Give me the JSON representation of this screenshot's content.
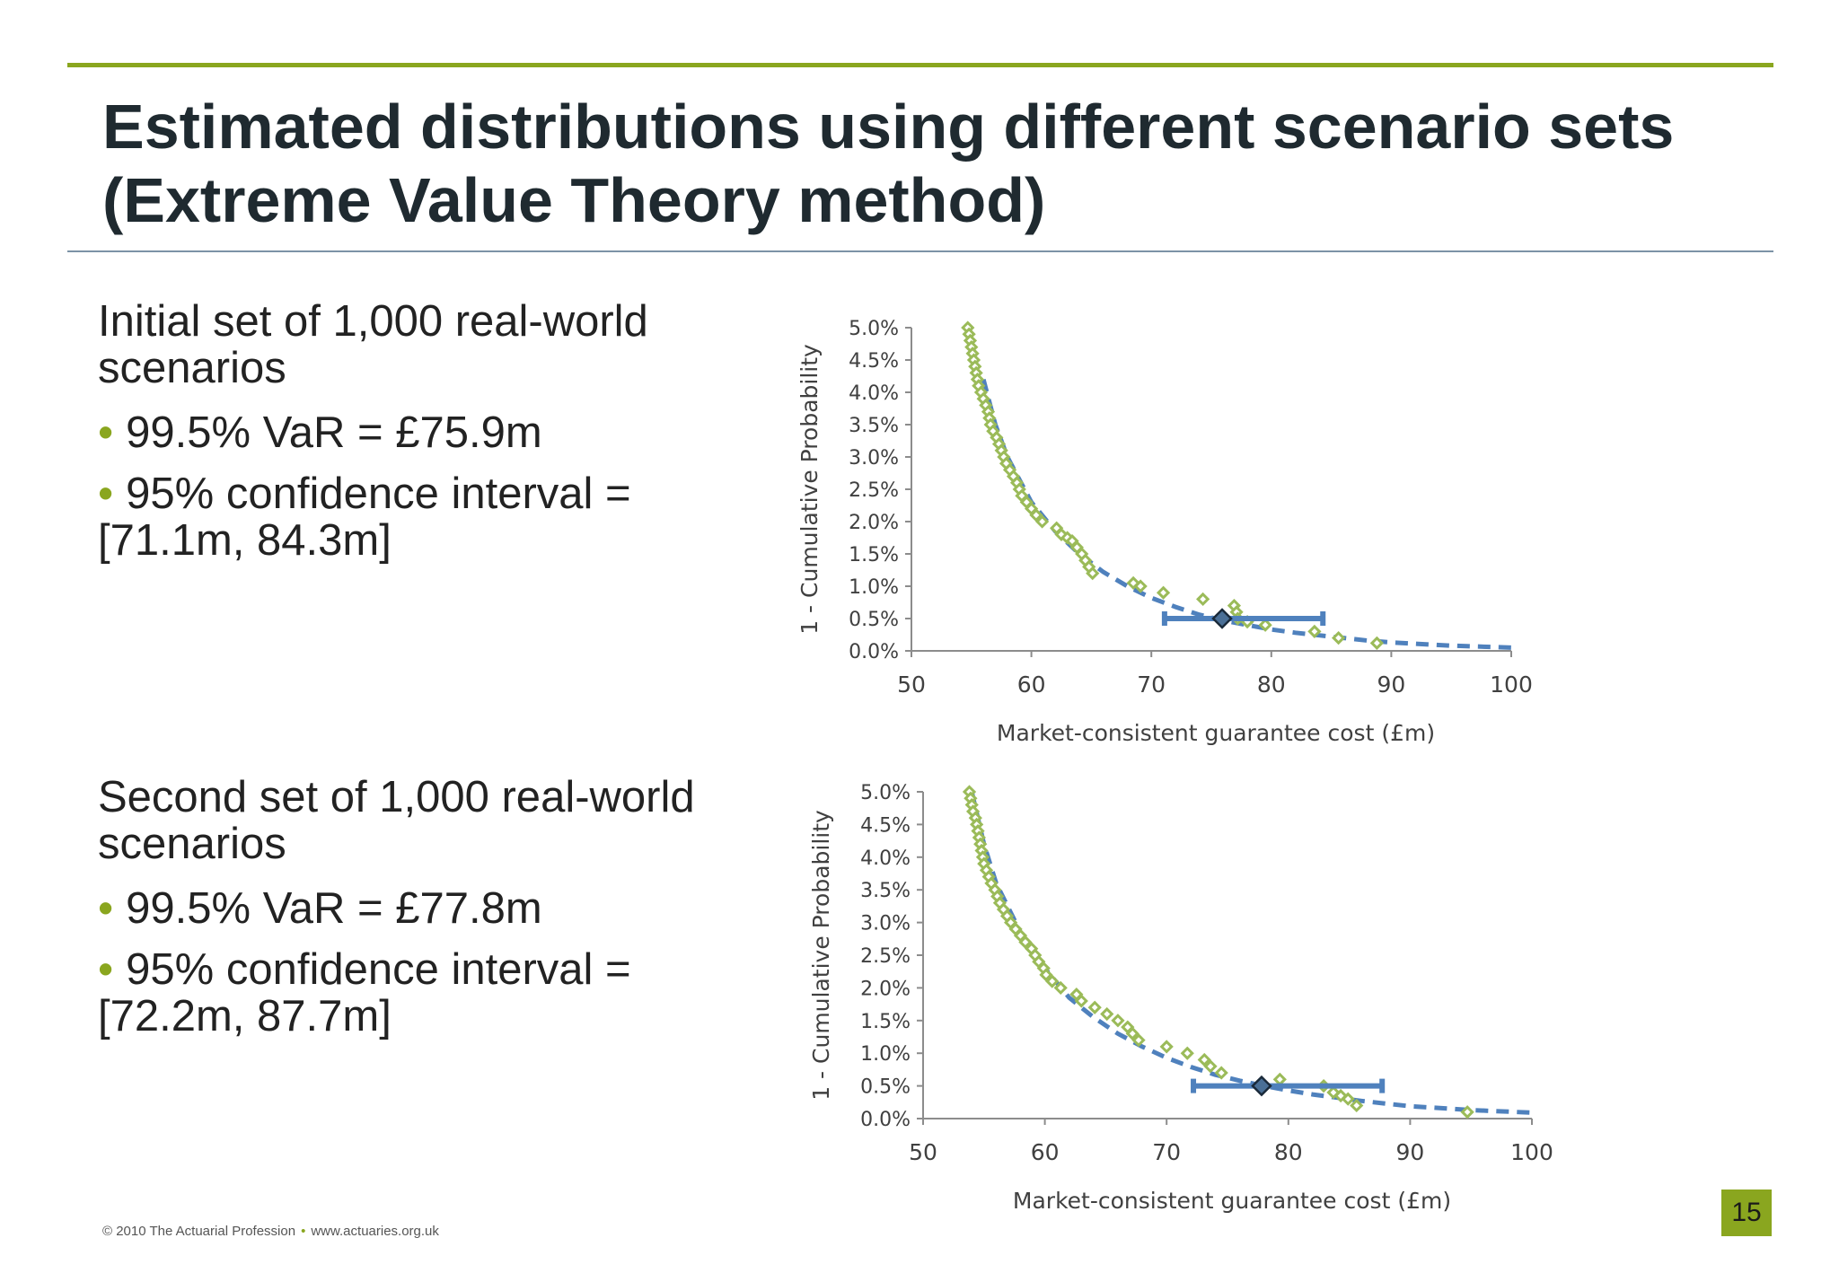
{
  "title": "Estimated distributions using different scenario sets\n(Extreme Value Theory method)",
  "blocks": [
    {
      "heading": "Initial set of 1,000 real-world scenarios",
      "bullets": [
        "99.5% VaR = £75.9m",
        "95% confidence interval = [71.1m, 84.3m]"
      ]
    },
    {
      "heading": "Second set of 1,000 real-world scenarios",
      "bullets": [
        "99.5% VaR = £77.8m",
        "95% confidence interval = [72.2m, 87.7m]"
      ]
    }
  ],
  "footer": {
    "copyright": "© 2010 The Actuarial Profession",
    "site": "www.actuaries.org.uk"
  },
  "page_number": "15",
  "colors": {
    "accent_green": "#8aa61f",
    "fit_blue": "#4f81bd",
    "var_marker": "#4a6f96",
    "scatter_green": "#9bbb59"
  },
  "chart_data": [
    {
      "type": "scatter",
      "xlabel": "Market-consistent guarantee cost (£m)",
      "ylabel": "1 - Cumulative Probability",
      "xlim": [
        50,
        100
      ],
      "ylim": [
        0,
        5
      ],
      "x_ticks": [
        50,
        60,
        70,
        80,
        90,
        100
      ],
      "y_ticks": [
        "0.0%",
        "0.5%",
        "1.0%",
        "1.5%",
        "2.0%",
        "2.5%",
        "3.0%",
        "3.5%",
        "4.0%",
        "4.5%",
        "5.0%"
      ],
      "grid": false,
      "series": [
        {
          "kind": "points",
          "points": [
            [
              54.7,
              5.0
            ],
            [
              54.8,
              4.9
            ],
            [
              54.9,
              4.8
            ],
            [
              55.0,
              4.7
            ],
            [
              55.1,
              4.6
            ],
            [
              55.2,
              4.5
            ],
            [
              55.3,
              4.4
            ],
            [
              55.4,
              4.3
            ],
            [
              55.5,
              4.2
            ],
            [
              55.6,
              4.1
            ],
            [
              55.8,
              4.0
            ],
            [
              56.0,
              3.9
            ],
            [
              56.2,
              3.8
            ],
            [
              56.4,
              3.7
            ],
            [
              56.5,
              3.6
            ],
            [
              56.6,
              3.5
            ],
            [
              56.8,
              3.4
            ],
            [
              57.1,
              3.3
            ],
            [
              57.3,
              3.2
            ],
            [
              57.5,
              3.1
            ],
            [
              57.7,
              3.0
            ],
            [
              57.9,
              2.9
            ],
            [
              58.2,
              2.8
            ],
            [
              58.5,
              2.7
            ],
            [
              58.8,
              2.6
            ],
            [
              59.0,
              2.5
            ],
            [
              59.2,
              2.4
            ],
            [
              59.6,
              2.3
            ],
            [
              60.0,
              2.2
            ],
            [
              60.4,
              2.1
            ],
            [
              60.9,
              2.0
            ],
            [
              62.1,
              1.9
            ],
            [
              62.5,
              1.8
            ],
            [
              63.0,
              1.75
            ],
            [
              63.4,
              1.7
            ],
            [
              63.8,
              1.6
            ],
            [
              64.2,
              1.5
            ],
            [
              64.5,
              1.4
            ],
            [
              64.8,
              1.3
            ],
            [
              65.1,
              1.2
            ],
            [
              68.5,
              1.05
            ],
            [
              69.1,
              1.0
            ],
            [
              71.0,
              0.9
            ],
            [
              74.3,
              0.8
            ],
            [
              76.9,
              0.7
            ],
            [
              77.1,
              0.6
            ],
            [
              77.2,
              0.5
            ],
            [
              78.0,
              0.45
            ],
            [
              79.5,
              0.4
            ],
            [
              83.6,
              0.3
            ],
            [
              85.6,
              0.2
            ],
            [
              88.8,
              0.12
            ]
          ]
        },
        {
          "kind": "fitted_curve",
          "points": [
            [
              56.0,
              4.2
            ],
            [
              57.0,
              3.5
            ],
            [
              58.0,
              3.0
            ],
            [
              60.0,
              2.3
            ],
            [
              62.0,
              1.85
            ],
            [
              64.0,
              1.5
            ],
            [
              66.0,
              1.22
            ],
            [
              68.0,
              1.0
            ],
            [
              70.0,
              0.82
            ],
            [
              72.0,
              0.68
            ],
            [
              74.0,
              0.56
            ],
            [
              76.0,
              0.47
            ],
            [
              78.0,
              0.4
            ],
            [
              80.0,
              0.33
            ],
            [
              82.0,
              0.28
            ],
            [
              84.0,
              0.24
            ],
            [
              86.0,
              0.2
            ],
            [
              88.0,
              0.16
            ],
            [
              90.0,
              0.13
            ],
            [
              95.0,
              0.08
            ],
            [
              100.0,
              0.05
            ]
          ]
        },
        {
          "kind": "var_estimate",
          "x": 75.9,
          "y": 0.5,
          "ci": [
            71.1,
            84.3
          ]
        }
      ]
    },
    {
      "type": "scatter",
      "xlabel": "Market-consistent guarantee cost (£m)",
      "ylabel": "1 - Cumulative Probability",
      "xlim": [
        50,
        100
      ],
      "ylim": [
        0,
        5
      ],
      "x_ticks": [
        50,
        60,
        70,
        80,
        90,
        100
      ],
      "y_ticks": [
        "0.0%",
        "0.5%",
        "1.0%",
        "1.5%",
        "2.0%",
        "2.5%",
        "3.0%",
        "3.5%",
        "4.0%",
        "4.5%",
        "5.0%"
      ],
      "grid": false,
      "series": [
        {
          "kind": "points",
          "points": [
            [
              53.8,
              5.0
            ],
            [
              53.9,
              4.9
            ],
            [
              54.0,
              4.8
            ],
            [
              54.1,
              4.7
            ],
            [
              54.3,
              4.6
            ],
            [
              54.4,
              4.5
            ],
            [
              54.5,
              4.4
            ],
            [
              54.6,
              4.3
            ],
            [
              54.7,
              4.2
            ],
            [
              54.8,
              4.1
            ],
            [
              54.9,
              4.0
            ],
            [
              55.0,
              3.9
            ],
            [
              55.2,
              3.8
            ],
            [
              55.4,
              3.7
            ],
            [
              55.6,
              3.6
            ],
            [
              55.9,
              3.5
            ],
            [
              56.1,
              3.4
            ],
            [
              56.3,
              3.3
            ],
            [
              56.6,
              3.2
            ],
            [
              56.9,
              3.1
            ],
            [
              57.2,
              3.0
            ],
            [
              57.6,
              2.9
            ],
            [
              58.0,
              2.8
            ],
            [
              58.4,
              2.7
            ],
            [
              58.9,
              2.6
            ],
            [
              59.2,
              2.5
            ],
            [
              59.5,
              2.4
            ],
            [
              59.9,
              2.3
            ],
            [
              60.1,
              2.2
            ],
            [
              60.6,
              2.1
            ],
            [
              61.3,
              2.0
            ],
            [
              62.6,
              1.9
            ],
            [
              63.0,
              1.8
            ],
            [
              64.1,
              1.7
            ],
            [
              65.1,
              1.6
            ],
            [
              66.0,
              1.5
            ],
            [
              66.8,
              1.4
            ],
            [
              67.2,
              1.3
            ],
            [
              67.7,
              1.2
            ],
            [
              70.0,
              1.1
            ],
            [
              71.7,
              1.0
            ],
            [
              73.1,
              0.9
            ],
            [
              73.6,
              0.8
            ],
            [
              74.5,
              0.7
            ],
            [
              79.3,
              0.6
            ],
            [
              82.9,
              0.5
            ],
            [
              83.7,
              0.4
            ],
            [
              84.3,
              0.35
            ],
            [
              84.9,
              0.3
            ],
            [
              85.6,
              0.2
            ],
            [
              94.7,
              0.1
            ]
          ]
        },
        {
          "kind": "fitted_curve",
          "points": [
            [
              54.0,
              5.0
            ],
            [
              55.0,
              4.2
            ],
            [
              56.0,
              3.6
            ],
            [
              58.0,
              2.85
            ],
            [
              60.0,
              2.3
            ],
            [
              62.0,
              1.85
            ],
            [
              64.0,
              1.55
            ],
            [
              66.0,
              1.3
            ],
            [
              68.0,
              1.1
            ],
            [
              70.0,
              0.93
            ],
            [
              72.0,
              0.79
            ],
            [
              74.0,
              0.67
            ],
            [
              76.0,
              0.58
            ],
            [
              78.0,
              0.5
            ],
            [
              80.0,
              0.43
            ],
            [
              82.0,
              0.37
            ],
            [
              84.0,
              0.32
            ],
            [
              86.0,
              0.27
            ],
            [
              88.0,
              0.23
            ],
            [
              90.0,
              0.19
            ],
            [
              95.0,
              0.13
            ],
            [
              100.0,
              0.09
            ]
          ]
        },
        {
          "kind": "var_estimate",
          "x": 77.8,
          "y": 0.5,
          "ci": [
            72.2,
            87.7
          ]
        }
      ]
    }
  ]
}
